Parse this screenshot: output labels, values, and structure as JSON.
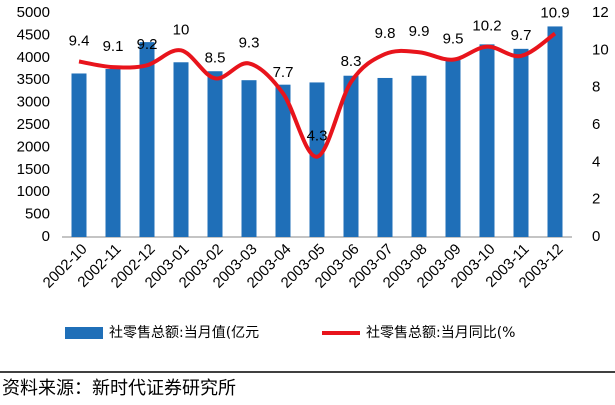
{
  "chart_data": {
    "type": "bar-line",
    "categories": [
      "2002-10",
      "2002-11",
      "2002-12",
      "2003-01",
      "2003-02",
      "2003-03",
      "2003-04",
      "2003-05",
      "2003-06",
      "2003-07",
      "2003-08",
      "2003-09",
      "2003-10",
      "2003-11",
      "2003-12"
    ],
    "series": [
      {
        "name": "社零售总额:当月值(亿元",
        "type": "bar",
        "color": "#1f6fb8",
        "axis": "y",
        "values": [
          3650,
          3750,
          4350,
          3900,
          3700,
          3500,
          3400,
          3450,
          3600,
          3550,
          3600,
          3950,
          4300,
          4200,
          4700
        ]
      },
      {
        "name": "社零售总额:当月同比(%",
        "type": "line",
        "color": "#e8141c",
        "axis": "y2",
        "show_labels": true,
        "values": [
          9.4,
          9.1,
          9.2,
          10,
          8.5,
          9.3,
          7.7,
          4.3,
          8.3,
          9.8,
          9.9,
          9.5,
          10.2,
          9.7,
          10.9
        ]
      }
    ],
    "ylim": [
      0,
      5000
    ],
    "yticks": [
      0,
      500,
      1000,
      1500,
      2000,
      2500,
      3000,
      3500,
      4000,
      4500,
      5000
    ],
    "y2lim": [
      0,
      12
    ],
    "y2ticks": [
      0,
      2,
      4,
      6,
      8,
      10,
      12
    ],
    "grid": false,
    "legend": "bottom"
  },
  "footer": {
    "source": "资料来源：新时代证券研究所"
  }
}
